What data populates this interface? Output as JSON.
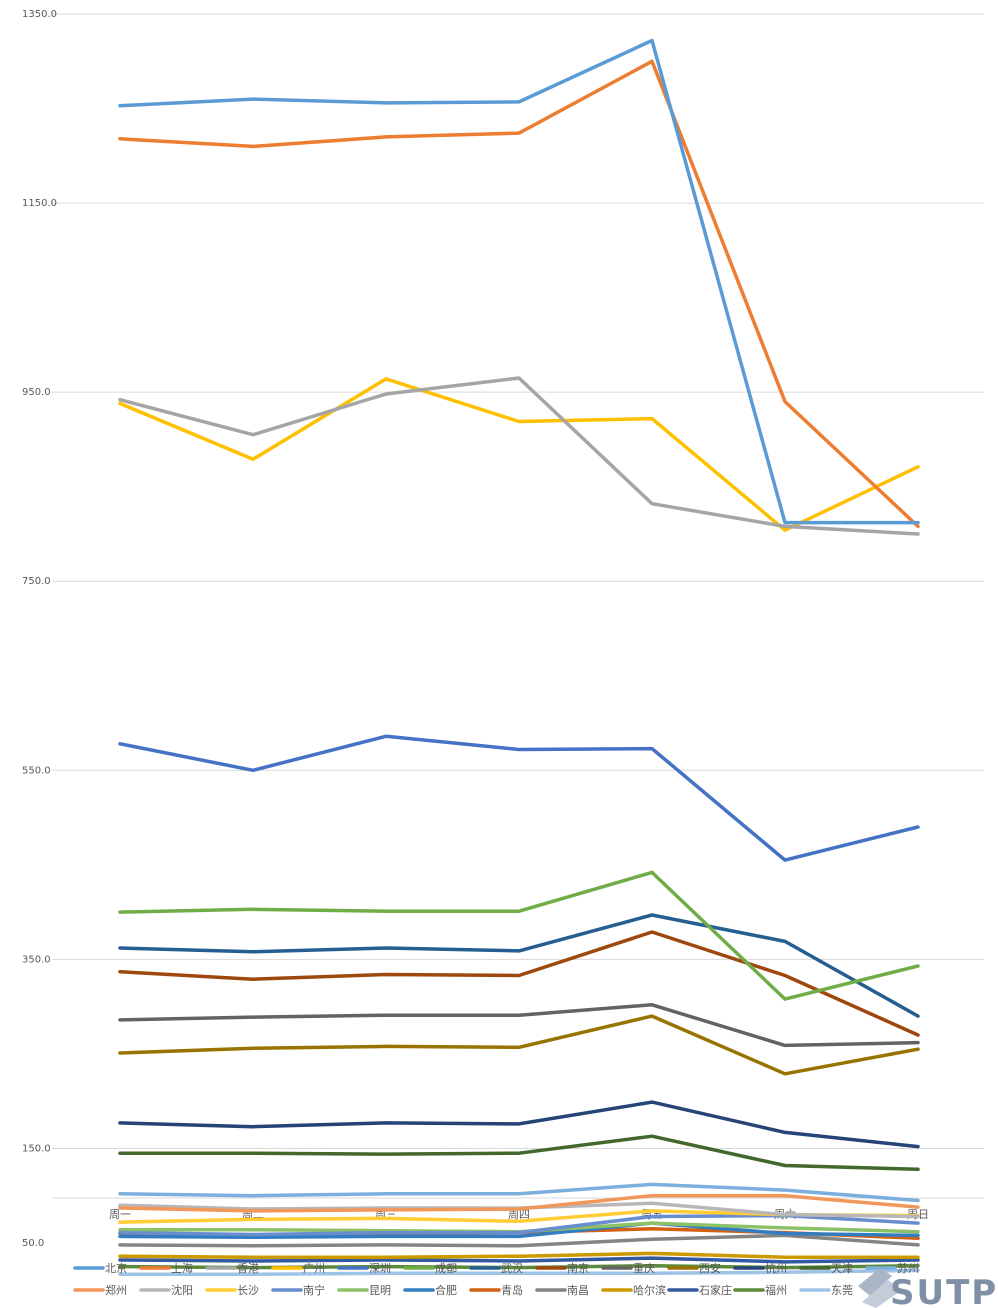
{
  "chart_data": {
    "type": "line",
    "title": "",
    "xlabel": "",
    "ylabel": "",
    "ylim": [
      50,
      1350
    ],
    "yticks": [
      "1350.0",
      "1150.0",
      "950.0",
      "750.0",
      "550.0",
      "350.0",
      "150.0",
      "50.0"
    ],
    "categories": [
      "周一",
      "周二",
      "周三",
      "周四",
      "周五",
      "周六",
      "周日"
    ],
    "legend_position": "bottom",
    "series": [
      {
        "name": "北京",
        "color": "#5b9bd5",
        "values": [
          1253,
          1260,
          1256,
          1257,
          1322,
          812,
          812
        ]
      },
      {
        "name": "上海",
        "color": "#ed7d31",
        "values": [
          1218,
          1210,
          1220,
          1224,
          1300,
          940,
          808
        ]
      },
      {
        "name": "香港",
        "color": "#a5a5a5",
        "values": [
          942,
          905,
          948,
          965,
          832,
          808,
          800
        ]
      },
      {
        "name": "广州",
        "color": "#ffc000",
        "values": [
          938,
          879,
          964,
          919,
          922,
          804,
          871
        ]
      },
      {
        "name": "深圳",
        "color": "#4472c4",
        "values": [
          578,
          550,
          586,
          572,
          573,
          455,
          490
        ]
      },
      {
        "name": "成都",
        "color": "#70ad47",
        "values": [
          400,
          403,
          401,
          401,
          442,
          308,
          343
        ]
      },
      {
        "name": "武汉",
        "color": "#255e91",
        "values": [
          362,
          358,
          362,
          359,
          397,
          369,
          290
        ]
      },
      {
        "name": "南京",
        "color": "#9e480e",
        "values": [
          337,
          329,
          334,
          333,
          379,
          333,
          270
        ]
      },
      {
        "name": "重庆",
        "color": "#636363",
        "values": [
          286,
          289,
          291,
          291,
          302,
          259,
          262
        ]
      },
      {
        "name": "西安",
        "color": "#997300",
        "values": [
          251,
          256,
          258,
          257,
          290,
          229,
          255
        ]
      },
      {
        "name": "杭州",
        "color": "#264478",
        "values": [
          177,
          173,
          177,
          176,
          199,
          167,
          152
        ]
      },
      {
        "name": "天津",
        "color": "#43682b",
        "values": [
          145,
          145,
          144,
          145,
          163,
          132,
          128
        ]
      },
      {
        "name": "苏州",
        "color": "#7cafdd",
        "values": [
          102,
          100,
          102,
          102,
          112,
          106,
          95
        ]
      },
      {
        "name": "郑州",
        "color": "#f1975a",
        "values": [
          87,
          84,
          85,
          86,
          100,
          100,
          88
        ]
      },
      {
        "name": "沈阳",
        "color": "#b7b7b7",
        "values": [
          90,
          86,
          87,
          87,
          92,
          80,
          78
        ]
      },
      {
        "name": "长沙",
        "color": "#ffcd33",
        "values": [
          72,
          75,
          76,
          73,
          84,
          80,
          79
        ]
      },
      {
        "name": "南宁",
        "color": "#698ed0",
        "values": [
          61,
          59,
          61,
          61,
          78,
          79,
          71
        ]
      },
      {
        "name": "昆明",
        "color": "#8cc168",
        "values": [
          64,
          64,
          63,
          62,
          71,
          66,
          62
        ]
      },
      {
        "name": "合肥",
        "color": "#327dc2",
        "values": [
          57,
          56,
          57,
          57,
          71,
          60,
          58
        ]
      },
      {
        "name": "青岛",
        "color": "#d26012",
        "values": [
          60,
          58,
          59,
          61,
          65,
          61,
          55
        ]
      },
      {
        "name": "南昌",
        "color": "#848484",
        "values": [
          48,
          47,
          48,
          47,
          54,
          58,
          48
        ]
      },
      {
        "name": "哈尔滨",
        "color": "#cc9a00",
        "values": [
          36,
          35,
          35,
          36,
          39,
          35,
          35
        ]
      },
      {
        "name": "石家庄",
        "color": "#335aa1",
        "values": [
          32,
          31,
          32,
          31,
          34,
          30,
          32
        ]
      },
      {
        "name": "福州",
        "color": "#5a8a39",
        "values": [
          25,
          24,
          25,
          24,
          26,
          24,
          26
        ]
      },
      {
        "name": "东莞",
        "color": "#9dc3e6",
        "values": [
          17,
          17,
          18,
          18,
          18,
          19,
          21
        ]
      }
    ]
  },
  "watermark": {
    "text": "SUTPC"
  }
}
